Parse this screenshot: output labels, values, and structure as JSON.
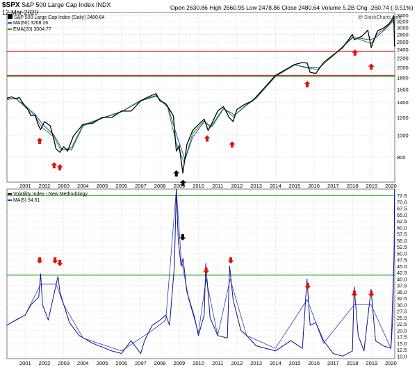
{
  "header": {
    "symbol": "$SPX",
    "name": "S&P 500 Large Cap Index INDX",
    "date": "12-Mar-2020",
    "ohlc": "Open 2630.86 High 2660.95 Low 2478.86 Close 2480.64 Volume 5.2B Chg -260.74 (-9.51%)",
    "watermark": "@ StockCharts.com"
  },
  "legend_top": [
    {
      "label": "S&P 500 Large Cap Index (Daily) 2480.64",
      "color": "#000000"
    },
    {
      "label": "MA(50) 3208.26",
      "color": "#1f3fbf"
    },
    {
      "label": "EMA(20) 3004.77",
      "color": "#1a9a1a"
    }
  ],
  "legend_bottom": [
    {
      "label": "Volatility Index - New Methodology",
      "color": "#000000"
    },
    {
      "label": "MA(5) 54.61",
      "color": "#1f3fbf"
    }
  ],
  "colors": {
    "price": "#000000",
    "down": "#cc0000",
    "ma50": "#1f3fbf",
    "ema20": "#1a9a1a",
    "vix": "#10108a",
    "hline_red": "#e01010",
    "hline_green": "#1a9a1a",
    "arrow_red": "#e01010",
    "arrow_black": "#000000"
  },
  "chart_data": [
    {
      "type": "line",
      "title": "S&P 500 Large Cap Index INDX",
      "yscale": "log",
      "ylim": [
        620,
        3500
      ],
      "yticks": [
        3400,
        3200,
        3000,
        2800,
        2600,
        2400,
        2200,
        2000,
        1800,
        1600,
        1400,
        1200,
        1000,
        800
      ],
      "xlim": [
        2000.05,
        2020.2
      ],
      "xticks": [
        "2001",
        "2002",
        "2003",
        "2004",
        "2005",
        "2006",
        "2007",
        "2008",
        "2009",
        "2010",
        "2011",
        "2012",
        "2013",
        "2014",
        "2015",
        "2016",
        "2017",
        "2018",
        "2019",
        "2020"
      ],
      "series": [
        {
          "name": "S&P 500 Large Cap Index (Daily)",
          "x": [
            2000.05,
            2000.3,
            2000.5,
            2000.7,
            2000.9,
            2001.1,
            2001.3,
            2001.5,
            2001.7,
            2001.8,
            2002.0,
            2002.3,
            2002.5,
            2002.6,
            2002.8,
            2003.0,
            2003.2,
            2003.5,
            2004.0,
            2004.5,
            2005.0,
            2005.5,
            2006.0,
            2006.5,
            2007.0,
            2007.4,
            2007.8,
            2008.0,
            2008.3,
            2008.5,
            2008.7,
            2008.85,
            2009.0,
            2009.19,
            2009.4,
            2009.7,
            2010.0,
            2010.3,
            2010.5,
            2010.7,
            2011.0,
            2011.3,
            2011.6,
            2011.8,
            2012.0,
            2012.4,
            2012.8,
            2013.0,
            2013.5,
            2014.0,
            2014.5,
            2015.0,
            2015.4,
            2015.65,
            2015.8,
            2016.1,
            2016.5,
            2017.0,
            2017.5,
            2018.0,
            2018.1,
            2018.5,
            2018.8,
            2018.98,
            2019.3,
            2019.6,
            2019.9,
            2020.1,
            2020.15,
            2020.19
          ],
          "y": [
            1460,
            1480,
            1450,
            1470,
            1380,
            1320,
            1220,
            1230,
            1100,
            1060,
            1150,
            1100,
            950,
            870,
            840,
            890,
            850,
            990,
            1120,
            1130,
            1200,
            1200,
            1280,
            1280,
            1420,
            1480,
            1530,
            1420,
            1380,
            1300,
            1220,
            850,
            900,
            680,
            910,
            1050,
            1115,
            1180,
            1050,
            1130,
            1280,
            1340,
            1200,
            1150,
            1300,
            1370,
            1420,
            1480,
            1650,
            1840,
            1950,
            2060,
            2100,
            2090,
            1900,
            1880,
            2100,
            2270,
            2450,
            2800,
            2650,
            2750,
            2920,
            2450,
            2900,
            2980,
            3120,
            3300,
            3380,
            2480
          ]
        },
        {
          "name": "MA(50)",
          "x": [
            2000.05,
            2000.5,
            2001.0,
            2001.5,
            2001.9,
            2002.5,
            2002.9,
            2003.4,
            2004.0,
            2005.0,
            2006.0,
            2007.0,
            2007.8,
            2008.4,
            2008.9,
            2009.3,
            2009.7,
            2010.3,
            2010.7,
            2011.3,
            2011.9,
            2012.5,
            2013.0,
            2014.0,
            2015.0,
            2015.8,
            2016.3,
            2017.0,
            2018.0,
            2018.3,
            2018.9,
            2019.2,
            2019.7,
            2020.1,
            2020.19
          ],
          "y": [
            1440,
            1460,
            1350,
            1240,
            1120,
            1000,
            870,
            860,
            1100,
            1190,
            1270,
            1420,
            1490,
            1350,
            980,
            780,
            980,
            1150,
            1090,
            1310,
            1230,
            1360,
            1460,
            1820,
            2050,
            1990,
            2000,
            2250,
            2700,
            2700,
            2650,
            2700,
            2950,
            3200,
            3208
          ]
        },
        {
          "name": "EMA(20)",
          "x": [
            2000.05,
            2000.5,
            2001.0,
            2001.5,
            2001.85,
            2002.5,
            2002.85,
            2003.4,
            2004.0,
            2005.0,
            2006.0,
            2007.0,
            2007.8,
            2008.4,
            2008.85,
            2009.25,
            2009.7,
            2010.3,
            2010.6,
            2011.3,
            2011.8,
            2012.5,
            2013.0,
            2014.0,
            2015.0,
            2015.7,
            2016.2,
            2017.0,
            2018.0,
            2018.2,
            2018.98,
            2019.3,
            2019.7,
            2020.1,
            2020.19
          ],
          "y": [
            1450,
            1460,
            1330,
            1220,
            1090,
            980,
            860,
            880,
            1110,
            1195,
            1275,
            1430,
            1500,
            1330,
            920,
            760,
            1020,
            1160,
            1080,
            1320,
            1210,
            1370,
            1470,
            1830,
            2055,
            1980,
            1960,
            2260,
            2720,
            2690,
            2550,
            2820,
            2980,
            3250,
            3005
          ]
        }
      ],
      "hlines": [
        {
          "y": 2350,
          "color": "#e01010"
        },
        {
          "y": 1840,
          "color": "#e01010"
        },
        {
          "y": 1840,
          "color": "#1a9a1a"
        }
      ]
    },
    {
      "type": "line",
      "title": "Volatility Index - New Methodology",
      "ylim": [
        9,
        75
      ],
      "yticks": [
        72.5,
        70.0,
        67.5,
        65.0,
        62.5,
        60.0,
        57.5,
        55.0,
        52.5,
        50.0,
        47.5,
        45.0,
        42.5,
        40.0,
        37.5,
        35.0,
        32.5,
        30.0,
        27.5,
        25.0,
        22.5,
        20.0,
        17.5,
        15.0,
        12.5,
        10.0
      ],
      "xlim": [
        2000.05,
        2020.2
      ],
      "xticks": [
        "2001",
        "2002",
        "2003",
        "2004",
        "2005",
        "2006",
        "2007",
        "2008",
        "2009",
        "2010",
        "2011",
        "2012",
        "2013",
        "2014",
        "2015",
        "2016",
        "2017",
        "2018",
        "2019",
        "2020"
      ],
      "series": [
        {
          "name": "Volatility Index - New Methodology",
          "x": [
            2000.05,
            2000.5,
            2001.0,
            2001.3,
            2001.7,
            2001.8,
            2001.9,
            2002.2,
            2002.55,
            2002.7,
            2002.8,
            2003.0,
            2003.3,
            2003.8,
            2004.5,
            2005.5,
            2006.0,
            2006.5,
            2007.0,
            2007.2,
            2007.6,
            2008.0,
            2008.3,
            2008.5,
            2008.75,
            2008.85,
            2008.95,
            2009.1,
            2009.2,
            2009.4,
            2009.8,
            2010.0,
            2010.3,
            2010.38,
            2010.6,
            2011.0,
            2011.5,
            2011.62,
            2011.8,
            2012.2,
            2012.5,
            2013.0,
            2014.0,
            2014.8,
            2015.4,
            2015.64,
            2015.8,
            2016.1,
            2016.5,
            2017.0,
            2017.5,
            2018.0,
            2018.09,
            2018.3,
            2018.6,
            2018.97,
            2019.2,
            2019.6,
            2020.0,
            2020.1,
            2020.17,
            2020.19
          ],
          "y": [
            22,
            24,
            26,
            30,
            33,
            42,
            30,
            24,
            36,
            41,
            35,
            30,
            23,
            18,
            15,
            12,
            11,
            16,
            11,
            16,
            22,
            24,
            26,
            22,
            45,
            80,
            55,
            45,
            48,
            35,
            25,
            18,
            26,
            46,
            25,
            18,
            17,
            45,
            32,
            20,
            18,
            14,
            12,
            16,
            13,
            40,
            22,
            23,
            16,
            11,
            10,
            12,
            37,
            18,
            12,
            36,
            16,
            14,
            13,
            25,
            54,
            76
          ]
        },
        {
          "name": "MA(5)",
          "x": [
            2000.05,
            2001.0,
            2001.8,
            2002.6,
            2003.0,
            2004.0,
            2006.0,
            2007.6,
            2008.3,
            2008.85,
            2009.1,
            2009.5,
            2010.0,
            2010.4,
            2011.0,
            2011.65,
            2012.5,
            2014.0,
            2015.65,
            2016.5,
            2018.1,
            2018.97,
            2020.0,
            2020.19
          ],
          "y": [
            22,
            26,
            38,
            38,
            30,
            17,
            12,
            20,
            24,
            75,
            48,
            32,
            19,
            40,
            18,
            40,
            18,
            13,
            32,
            15,
            30,
            30,
            13,
            54.61
          ]
        }
      ],
      "hlines": [
        {
          "y": 72.5,
          "color": "#1a9a1a"
        },
        {
          "y": 41.5,
          "color": "#1a9a1a"
        }
      ]
    }
  ]
}
